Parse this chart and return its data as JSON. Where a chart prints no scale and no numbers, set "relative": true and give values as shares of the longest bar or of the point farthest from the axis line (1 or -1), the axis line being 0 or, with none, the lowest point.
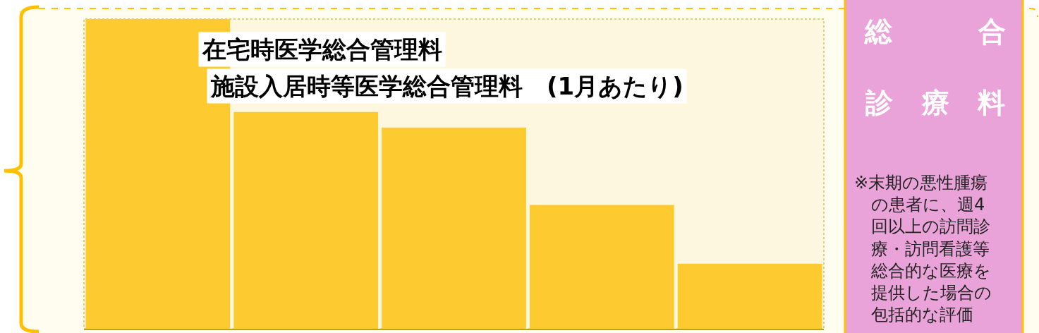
{
  "chart_data": {
    "type": "bar",
    "title": "在宅時医学総合管理料",
    "subtitle": "施設入居時等医学総合管理料　(1月あたり)",
    "categories": [
      null,
      null,
      null,
      null,
      null
    ],
    "values": [
      1,
      0.7,
      0.65,
      0.4,
      0.21
    ],
    "color": "#fdca2f",
    "relative": true,
    "annotations": [
      "総合診療料",
      "※末期の悪性腫瘍の患者に、週4回以上の訪問診療・訪問看護等総合的な医療を提供した場合の包括的な評価"
    ]
  }
}
